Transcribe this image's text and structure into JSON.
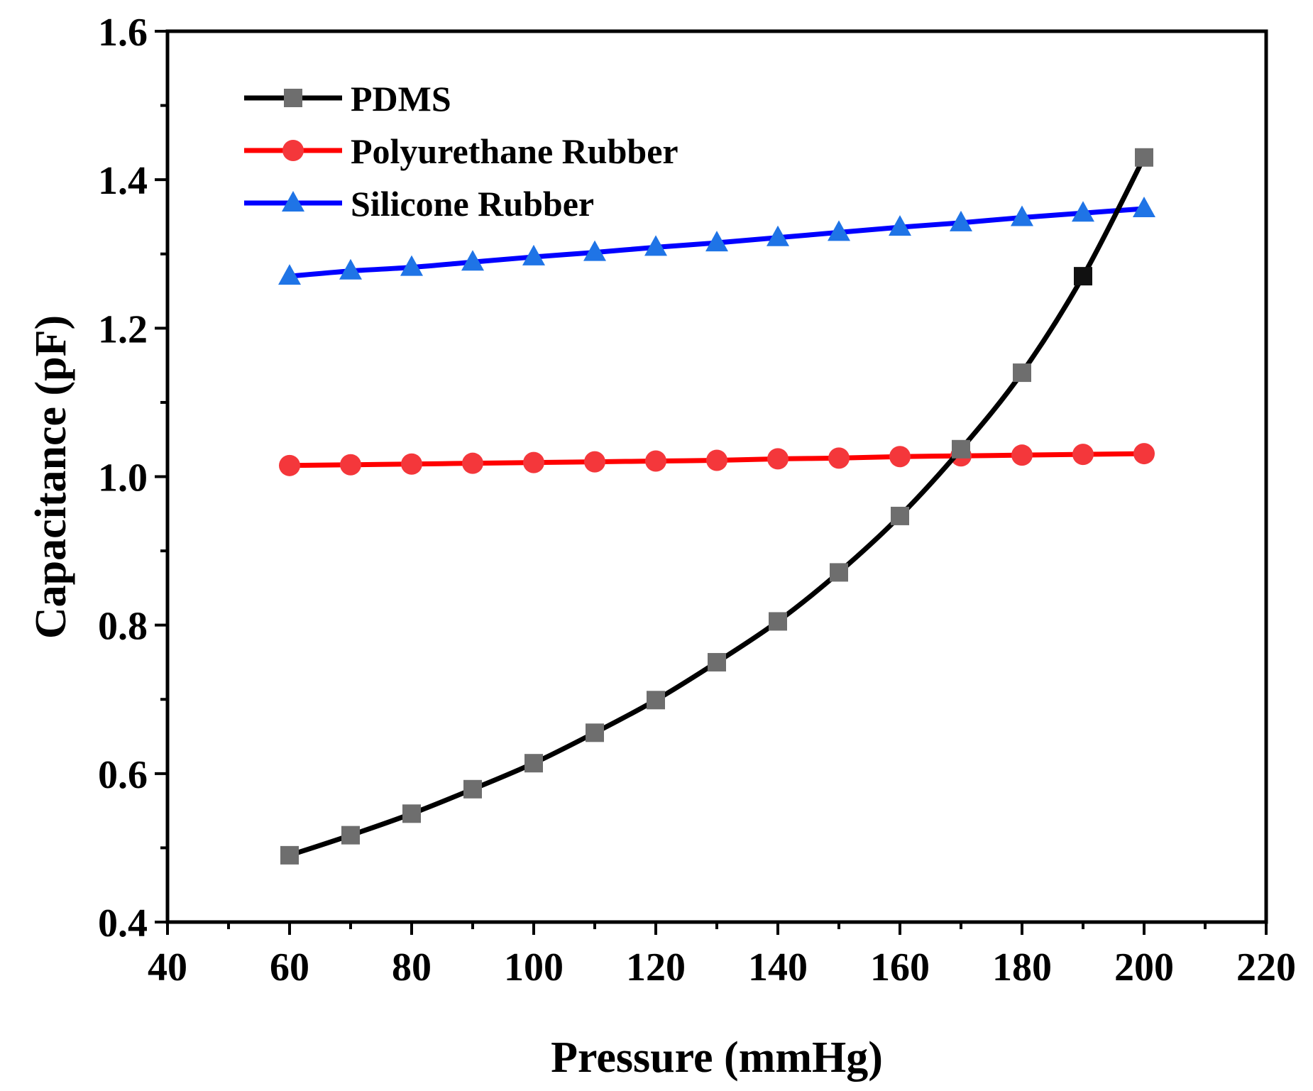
{
  "chart_data": {
    "type": "line",
    "title": "",
    "xlabel": "Pressure (mmHg)",
    "ylabel": "Capacitance (pF)",
    "xlim": [
      40,
      220
    ],
    "ylim": [
      0.4,
      1.6
    ],
    "xticks": [
      "40",
      "60",
      "80",
      "100",
      "120",
      "140",
      "160",
      "180",
      "200",
      "220"
    ],
    "yticks": [
      "0.4",
      "0.6",
      "0.8",
      "1.0",
      "1.2",
      "1.4",
      "1.6"
    ],
    "grid": false,
    "legend_position": "top-left",
    "x": [
      60,
      70,
      80,
      90,
      100,
      110,
      120,
      130,
      140,
      150,
      160,
      170,
      180,
      190,
      200
    ],
    "series": [
      {
        "name": "PDMS",
        "line_color": "#000000",
        "marker": "square",
        "marker_color": "#6e6e6e",
        "values": [
          0.49,
          0.517,
          0.546,
          0.579,
          0.614,
          0.655,
          0.699,
          0.75,
          0.805,
          0.871,
          0.947,
          1.037,
          1.14,
          1.27,
          1.43
        ]
      },
      {
        "name": "Polyurethane Rubber",
        "line_color": "#ff0000",
        "marker": "circle",
        "marker_color": "#f4373b",
        "values": [
          1.015,
          1.016,
          1.017,
          1.018,
          1.019,
          1.02,
          1.021,
          1.022,
          1.024,
          1.025,
          1.027,
          1.028,
          1.029,
          1.03,
          1.031
        ]
      },
      {
        "name": "Silicone Rubber",
        "line_color": "#0000ff",
        "marker": "triangle",
        "marker_color": "#1f74e6",
        "values": [
          1.27,
          1.277,
          1.282,
          1.289,
          1.296,
          1.302,
          1.309,
          1.315,
          1.322,
          1.329,
          1.336,
          1.342,
          1.349,
          1.355,
          1.361
        ]
      }
    ]
  }
}
